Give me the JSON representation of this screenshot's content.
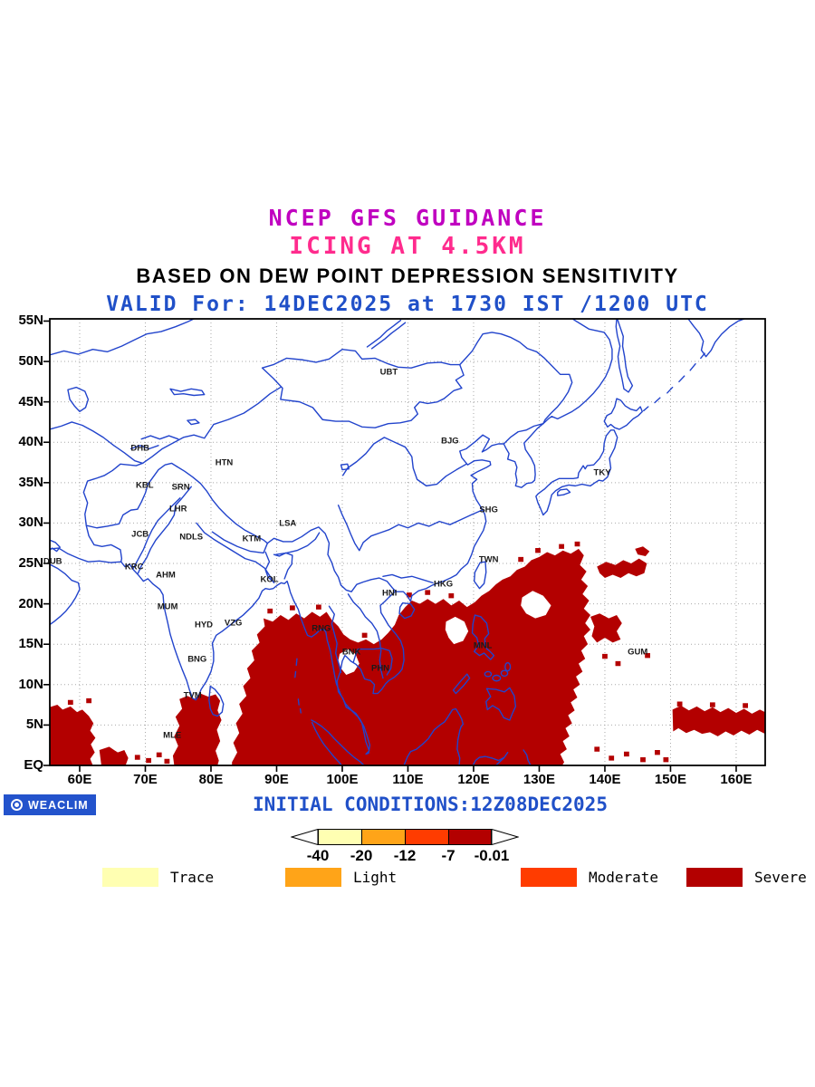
{
  "titles": {
    "line1": "NCEP GFS GUIDANCE",
    "line2": "ICING AT 4.5KM",
    "line3": "BASED ON DEW POINT DEPRESSION SENSITIVITY",
    "line4": "VALID For: 14DEC2025 at 1730 IST /1200 UTC"
  },
  "colors": {
    "title_magenta": "#c000c0",
    "title_pink": "#ff2b8d",
    "title_black": "#000000",
    "blue_text": "#2050c8",
    "map_line": "#2244cc",
    "grid": "#a9a9a9",
    "severe": "#b30000",
    "logo_bg": "#2353cc"
  },
  "axis": {
    "lat_ticks": [
      {
        "label": "55N",
        "value": 55
      },
      {
        "label": "50N",
        "value": 50
      },
      {
        "label": "45N",
        "value": 45
      },
      {
        "label": "40N",
        "value": 40
      },
      {
        "label": "35N",
        "value": 35
      },
      {
        "label": "30N",
        "value": 30
      },
      {
        "label": "25N",
        "value": 25
      },
      {
        "label": "20N",
        "value": 20
      },
      {
        "label": "15N",
        "value": 15
      },
      {
        "label": "10N",
        "value": 10
      },
      {
        "label": "5N",
        "value": 5
      },
      {
        "label": "EQ",
        "value": 0
      }
    ],
    "lon_ticks": [
      {
        "label": "60E",
        "value": 60
      },
      {
        "label": "70E",
        "value": 70
      },
      {
        "label": "80E",
        "value": 80
      },
      {
        "label": "90E",
        "value": 90
      },
      {
        "label": "100E",
        "value": 100
      },
      {
        "label": "110E",
        "value": 110
      },
      {
        "label": "120E",
        "value": 120
      },
      {
        "label": "130E",
        "value": 130
      },
      {
        "label": "140E",
        "value": 140
      },
      {
        "label": "150E",
        "value": 150
      },
      {
        "label": "160E",
        "value": 160
      }
    ]
  },
  "stations": [
    {
      "label": "UBT",
      "lon": 107.1,
      "lat": 48.7
    },
    {
      "label": "BJG",
      "lon": 116.4,
      "lat": 40.1
    },
    {
      "label": "TKY",
      "lon": 139.6,
      "lat": 36.2
    },
    {
      "label": "DHB",
      "lon": 69.2,
      "lat": 39.2
    },
    {
      "label": "HTN",
      "lon": 82.0,
      "lat": 37.5
    },
    {
      "label": "KBL",
      "lon": 69.9,
      "lat": 34.7
    },
    {
      "label": "SRN",
      "lon": 75.4,
      "lat": 34.4
    },
    {
      "label": "LHR",
      "lon": 75.0,
      "lat": 31.7
    },
    {
      "label": "SHG",
      "lon": 122.3,
      "lat": 31.6
    },
    {
      "label": "JCB",
      "lon": 69.2,
      "lat": 28.6
    },
    {
      "label": "NDLS",
      "lon": 77.0,
      "lat": 28.2
    },
    {
      "label": "KTM",
      "lon": 86.2,
      "lat": 28.0
    },
    {
      "label": "LSA",
      "lon": 91.7,
      "lat": 29.9
    },
    {
      "label": "DUB",
      "lon": 55.9,
      "lat": 25.2
    },
    {
      "label": "KRC",
      "lon": 68.3,
      "lat": 24.6
    },
    {
      "label": "TWN",
      "lon": 122.3,
      "lat": 25.5
    },
    {
      "label": "AHM",
      "lon": 73.1,
      "lat": 23.5
    },
    {
      "label": "KOL",
      "lon": 88.9,
      "lat": 23.0
    },
    {
      "label": "HKG",
      "lon": 115.4,
      "lat": 22.4
    },
    {
      "label": "HNI",
      "lon": 107.2,
      "lat": 21.3
    },
    {
      "label": "MUM",
      "lon": 73.4,
      "lat": 19.6
    },
    {
      "label": "HYD",
      "lon": 78.9,
      "lat": 17.4
    },
    {
      "label": "VZG",
      "lon": 83.4,
      "lat": 17.6
    },
    {
      "label": "RNG",
      "lon": 96.8,
      "lat": 16.9
    },
    {
      "label": "MNL",
      "lon": 121.4,
      "lat": 14.8
    },
    {
      "label": "GUM",
      "lon": 145.0,
      "lat": 14.0
    },
    {
      "label": "BNK",
      "lon": 101.4,
      "lat": 14.0
    },
    {
      "label": "PHN",
      "lon": 105.8,
      "lat": 12.0
    },
    {
      "label": "BNG",
      "lon": 77.9,
      "lat": 13.1
    },
    {
      "label": "TVM",
      "lon": 77.2,
      "lat": 8.6
    },
    {
      "label": "MLE",
      "lon": 74.1,
      "lat": 3.7
    }
  ],
  "map": {
    "severe_color": "#b30000",
    "severe_regions_summary": [
      "Equatorial Indian Ocean 55E-67E, EQ-7N",
      "Seas around South India and Sri Lanka 74E-81E, EQ-9N",
      "Bay of Bengal, Indochina, Maritime Continent and Philippines 83E-137E, EQ-20N",
      "Band extending northeast of Luzon to about 136E, 26N",
      "Patches 138E-147E, 15N-26N west and north of Guam",
      "Equatorial western Pacific strip 150E-164E, 4N-7N"
    ]
  },
  "footer": {
    "logo_text": "WEACLIM",
    "initial_conditions": "INITIAL CONDITIONS:12Z08DEC2025",
    "scale": {
      "values": [
        "-40",
        "-20",
        "-12",
        "-7",
        "-0.01"
      ],
      "colors": [
        "#ffffb2",
        "#ffa418",
        "#ff3c00",
        "#b30000"
      ]
    },
    "legend": [
      {
        "label": "Trace",
        "color": "#ffffb2"
      },
      {
        "label": "Light",
        "color": "#ffa418"
      },
      {
        "label": "Moderate",
        "color": "#ff3c00"
      },
      {
        "label": "Severe",
        "color": "#b30000"
      }
    ]
  }
}
